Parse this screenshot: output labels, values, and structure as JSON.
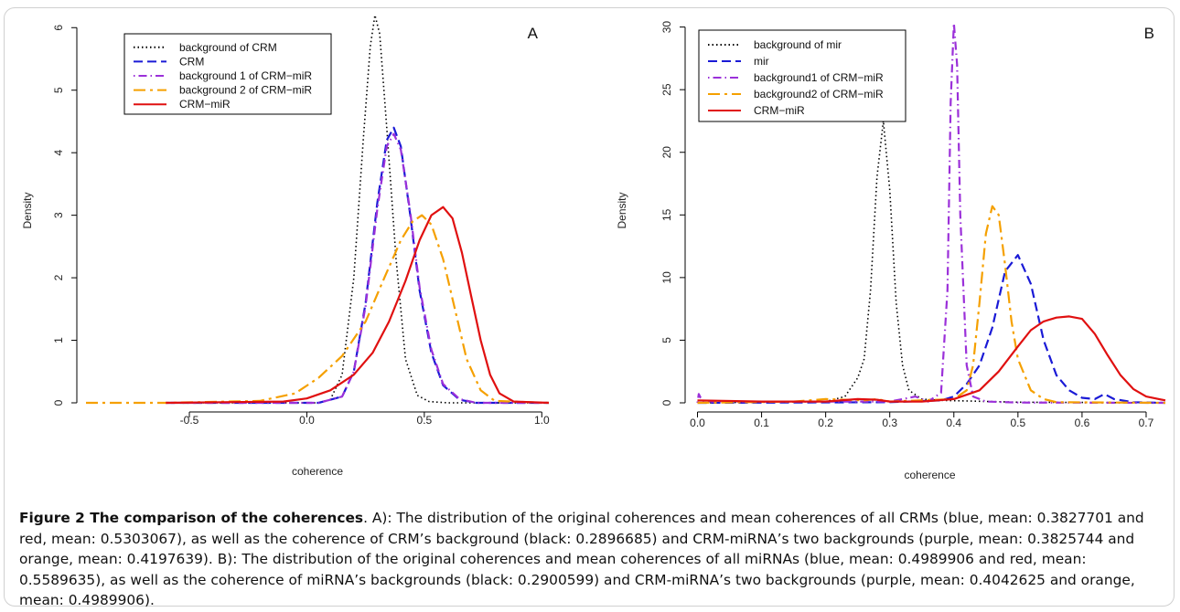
{
  "caption": {
    "title": "Figure 2 The comparison of the coherences",
    "text": ". A): The distribution of the original coherences and mean coherences of all CRMs (blue, mean: 0.3827701 and red, mean: 0.5303067), as well as the coherence of CRM’s background (black: 0.2896685) and CRM-miRNA’s two backgrounds (purple, mean: 0.3825744 and orange, mean: 0.4197639). B): The distribution of the original coherences and mean coherences of all miRNAs (blue, mean: 0.4989906 and red, mean: 0.5589635), as well as the coherence of miRNA’s backgrounds (black: 0.2900599) and CRM-miRNA’s two backgrounds (purple, mean: 0.4042625 and orange, mean: 0.4989906)."
  },
  "colors": {
    "black": "#000000",
    "blue": "#1a1ad6",
    "purple": "#9b30d9",
    "orange": "#f5a000",
    "red": "#e01010"
  },
  "chart_data": [
    {
      "type": "line",
      "panel_label": "A",
      "xlabel": "coherence",
      "ylabel": "Density",
      "xlim": [
        -0.94,
        1.03
      ],
      "ylim": [
        0,
        6.15
      ],
      "xticks": [
        -0.5,
        0.0,
        0.5,
        1.0
      ],
      "xtick_labels": [
        "-0.5",
        "0.0",
        "0.5",
        "1.0"
      ],
      "yticks": [
        0,
        1,
        2,
        3,
        4,
        5,
        6
      ],
      "ytick_labels": [
        "0",
        "1",
        "2",
        "3",
        "4",
        "5",
        "6"
      ],
      "legend_position": "top-left",
      "series": [
        {
          "name": "background of CRM",
          "color": "black",
          "dash": "dotted",
          "x": [
            -0.6,
            0.05,
            0.1,
            0.15,
            0.2,
            0.24,
            0.27,
            0.29,
            0.31,
            0.34,
            0.38,
            0.42,
            0.47,
            0.52,
            0.6,
            1.03
          ],
          "y": [
            0,
            0,
            0.05,
            0.45,
            2.0,
            4.2,
            5.7,
            6.2,
            5.9,
            4.4,
            2.3,
            0.7,
            0.12,
            0.02,
            0,
            0
          ]
        },
        {
          "name": "CRM",
          "color": "blue",
          "dash": "dashed",
          "x": [
            -0.6,
            0.05,
            0.15,
            0.2,
            0.25,
            0.3,
            0.34,
            0.37,
            0.4,
            0.44,
            0.48,
            0.53,
            0.58,
            0.65,
            0.72,
            1.03
          ],
          "y": [
            0,
            0,
            0.1,
            0.5,
            1.6,
            3.2,
            4.2,
            4.4,
            4.1,
            3.0,
            1.8,
            0.8,
            0.28,
            0.05,
            0,
            0
          ]
        },
        {
          "name": "background 1 of CRM−miR",
          "color": "purple",
          "dash": "dashdot",
          "x": [
            -0.6,
            0.05,
            0.15,
            0.2,
            0.25,
            0.3,
            0.34,
            0.37,
            0.4,
            0.44,
            0.48,
            0.53,
            0.58,
            0.65,
            0.72,
            1.03
          ],
          "y": [
            0,
            0,
            0.1,
            0.5,
            1.55,
            3.1,
            4.1,
            4.3,
            4.05,
            3.05,
            1.85,
            0.85,
            0.3,
            0.06,
            0,
            0
          ]
        },
        {
          "name": "background 2 of CRM−miR",
          "color": "orange",
          "dash": "longdash",
          "x": [
            -0.94,
            -0.6,
            -0.2,
            -0.05,
            0.05,
            0.15,
            0.25,
            0.33,
            0.4,
            0.45,
            0.49,
            0.53,
            0.58,
            0.63,
            0.68,
            0.74,
            0.8,
            1.03
          ],
          "y": [
            0,
            0,
            0.03,
            0.15,
            0.4,
            0.75,
            1.3,
            2.0,
            2.6,
            2.9,
            3.0,
            2.85,
            2.3,
            1.5,
            0.7,
            0.2,
            0.03,
            0
          ]
        },
        {
          "name": "CRM−miR",
          "color": "red",
          "dash": "solid",
          "x": [
            -0.6,
            -0.1,
            0.0,
            0.1,
            0.2,
            0.28,
            0.35,
            0.42,
            0.48,
            0.53,
            0.58,
            0.62,
            0.66,
            0.7,
            0.74,
            0.78,
            0.82,
            0.88,
            1.03
          ],
          "y": [
            0,
            0.02,
            0.07,
            0.2,
            0.45,
            0.8,
            1.3,
            1.95,
            2.6,
            3.0,
            3.13,
            2.95,
            2.4,
            1.7,
            1.0,
            0.45,
            0.15,
            0.02,
            0
          ]
        }
      ]
    },
    {
      "type": "line",
      "panel_label": "B",
      "xlabel": "coherence",
      "ylabel": "Density",
      "xlim": [
        -0.005,
        0.73
      ],
      "ylim": [
        0,
        30.7
      ],
      "xticks": [
        0.0,
        0.1,
        0.2,
        0.3,
        0.4,
        0.5,
        0.6,
        0.7
      ],
      "xtick_labels": [
        "0.0",
        "0.1",
        "0.2",
        "0.3",
        "0.4",
        "0.5",
        "0.6",
        "0.7"
      ],
      "yticks": [
        0,
        5,
        10,
        15,
        20,
        25,
        30
      ],
      "ytick_labels": [
        "0",
        "5",
        "10",
        "15",
        "20",
        "25",
        "30"
      ],
      "legend_position": "top-left",
      "series": [
        {
          "name": "background of mir",
          "color": "black",
          "dash": "dotted",
          "x": [
            0,
            0.2,
            0.23,
            0.25,
            0.26,
            0.27,
            0.28,
            0.29,
            0.3,
            0.31,
            0.32,
            0.33,
            0.35,
            0.38,
            0.5,
            0.73
          ],
          "y": [
            0,
            0.1,
            0.5,
            2.0,
            3.5,
            9.0,
            18.0,
            22.5,
            17.0,
            8.0,
            3.0,
            1.0,
            0.3,
            0.2,
            0.05,
            0
          ]
        },
        {
          "name": "mir",
          "color": "blue",
          "dash": "dashed",
          "x": [
            0,
            0.3,
            0.38,
            0.4,
            0.42,
            0.44,
            0.46,
            0.48,
            0.5,
            0.52,
            0.54,
            0.56,
            0.58,
            0.6,
            0.62,
            0.635,
            0.65,
            0.68,
            0.73
          ],
          "y": [
            0,
            0.05,
            0.2,
            0.5,
            1.5,
            3.0,
            6.0,
            10.5,
            11.8,
            9.5,
            5.0,
            2.2,
            1.0,
            0.4,
            0.3,
            0.7,
            0.3,
            0.05,
            0
          ]
        },
        {
          "name": "background1 of CRM−miR",
          "color": "purple",
          "dash": "dashdot",
          "x": [
            0,
            0.002,
            0.005,
            0.01,
            0.3,
            0.32,
            0.34,
            0.36,
            0.38,
            0.39,
            0.395,
            0.4,
            0.405,
            0.41,
            0.42,
            0.43,
            0.45,
            0.5,
            0.73
          ],
          "y": [
            0,
            0.7,
            0.4,
            0.1,
            0.1,
            0.3,
            0.5,
            0.1,
            0.8,
            9.0,
            24.0,
            30.3,
            27.0,
            15.0,
            3.0,
            0.5,
            0.1,
            0.02,
            0
          ]
        },
        {
          "name": "background2 of CRM−miR",
          "color": "orange",
          "dash": "longdash",
          "x": [
            0,
            0.15,
            0.2,
            0.26,
            0.28,
            0.3,
            0.4,
            0.42,
            0.43,
            0.44,
            0.45,
            0.46,
            0.47,
            0.48,
            0.49,
            0.5,
            0.52,
            0.54,
            0.56,
            0.73
          ],
          "y": [
            0,
            0.1,
            0.3,
            0.2,
            0.3,
            0.1,
            0.3,
            1.0,
            3.0,
            8.0,
            13.5,
            15.7,
            15.0,
            11.0,
            6.5,
            3.5,
            1.0,
            0.3,
            0.05,
            0
          ]
        },
        {
          "name": "CRM−miR",
          "color": "red",
          "dash": "solid",
          "x": [
            0,
            0.1,
            0.2,
            0.25,
            0.28,
            0.3,
            0.35,
            0.4,
            0.44,
            0.47,
            0.5,
            0.52,
            0.54,
            0.56,
            0.58,
            0.6,
            0.62,
            0.64,
            0.66,
            0.68,
            0.7,
            0.73
          ],
          "y": [
            0.2,
            0.1,
            0.1,
            0.3,
            0.25,
            0.1,
            0.1,
            0.3,
            1.0,
            2.5,
            4.5,
            5.8,
            6.5,
            6.8,
            6.9,
            6.7,
            5.5,
            3.8,
            2.2,
            1.1,
            0.5,
            0.2
          ]
        }
      ]
    }
  ]
}
